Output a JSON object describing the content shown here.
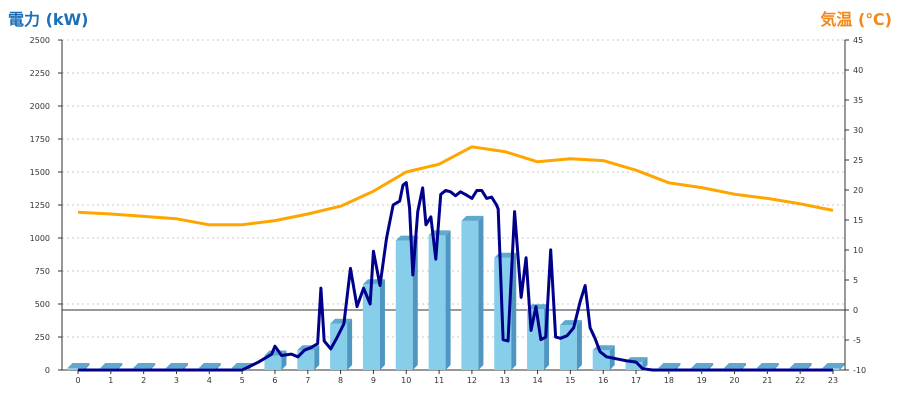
{
  "chart_data": {
    "type": "bar+line",
    "y_left_label": "電力 (kW)",
    "y_right_label": "気温 (℃)",
    "x_ticks": [
      "0",
      "1",
      "2",
      "3",
      "4",
      "5",
      "6",
      "7",
      "8",
      "9",
      "10",
      "11",
      "12",
      "13",
      "14",
      "15",
      "16",
      "17",
      "18",
      "19",
      "20",
      "21",
      "22",
      "23"
    ],
    "y_left_ticks": [
      "0",
      "250",
      "500",
      "750",
      "1000",
      "1250",
      "1500",
      "1750",
      "2000",
      "2250",
      "2500"
    ],
    "y_right_ticks": [
      "-10",
      "-5",
      "0",
      "5",
      "10",
      "15",
      "20",
      "25",
      "30",
      "35",
      "40",
      "45"
    ],
    "ylim_left": [
      0,
      2500
    ],
    "ylim_right": [
      -10,
      45
    ],
    "grid": true,
    "bars": {
      "x": [
        0,
        1,
        2,
        3,
        4,
        5,
        6,
        7,
        8,
        9,
        10,
        11,
        12,
        13,
        14,
        15,
        16,
        17,
        18,
        19,
        20,
        21,
        22,
        23
      ],
      "values": [
        15,
        15,
        15,
        15,
        15,
        15,
        110,
        150,
        350,
        650,
        980,
        1020,
        1130,
        850,
        460,
        340,
        150,
        60,
        15,
        15,
        15,
        15,
        15,
        15
      ],
      "color": "#87ceeb"
    },
    "power_line": {
      "color": "#00008b",
      "points": [
        [
          0,
          0
        ],
        [
          1,
          0
        ],
        [
          2,
          0
        ],
        [
          3,
          0
        ],
        [
          4,
          0
        ],
        [
          5,
          0
        ],
        [
          5.5,
          60
        ],
        [
          5.9,
          120
        ],
        [
          6,
          180
        ],
        [
          6.2,
          110
        ],
        [
          6.5,
          120
        ],
        [
          6.7,
          100
        ],
        [
          6.9,
          150
        ],
        [
          7.1,
          170
        ],
        [
          7.3,
          200
        ],
        [
          7.4,
          620
        ],
        [
          7.5,
          220
        ],
        [
          7.7,
          160
        ],
        [
          7.9,
          250
        ],
        [
          8.1,
          350
        ],
        [
          8.3,
          770
        ],
        [
          8.5,
          480
        ],
        [
          8.7,
          620
        ],
        [
          8.9,
          500
        ],
        [
          9,
          900
        ],
        [
          9.2,
          640
        ],
        [
          9.4,
          1000
        ],
        [
          9.6,
          1250
        ],
        [
          9.8,
          1280
        ],
        [
          9.9,
          1400
        ],
        [
          10,
          1420
        ],
        [
          10.1,
          1230
        ],
        [
          10.2,
          720
        ],
        [
          10.35,
          1200
        ],
        [
          10.5,
          1380
        ],
        [
          10.6,
          1100
        ],
        [
          10.75,
          1160
        ],
        [
          10.9,
          840
        ],
        [
          11.05,
          1330
        ],
        [
          11.2,
          1360
        ],
        [
          11.35,
          1350
        ],
        [
          11.5,
          1320
        ],
        [
          11.65,
          1350
        ],
        [
          11.8,
          1330
        ],
        [
          12,
          1300
        ],
        [
          12.15,
          1360
        ],
        [
          12.3,
          1360
        ],
        [
          12.45,
          1300
        ],
        [
          12.6,
          1310
        ],
        [
          12.75,
          1250
        ],
        [
          12.8,
          1220
        ],
        [
          12.95,
          230
        ],
        [
          13.1,
          220
        ],
        [
          13.3,
          1200
        ],
        [
          13.5,
          550
        ],
        [
          13.65,
          850
        ],
        [
          13.8,
          300
        ],
        [
          13.95,
          480
        ],
        [
          14.1,
          230
        ],
        [
          14.25,
          250
        ],
        [
          14.4,
          910
        ],
        [
          14.55,
          250
        ],
        [
          14.7,
          240
        ],
        [
          14.9,
          260
        ],
        [
          15.1,
          320
        ],
        [
          15.3,
          520
        ],
        [
          15.45,
          640
        ],
        [
          15.6,
          320
        ],
        [
          15.75,
          240
        ],
        [
          15.9,
          140
        ],
        [
          16.1,
          100
        ],
        [
          16.3,
          90
        ],
        [
          16.5,
          80
        ],
        [
          16.7,
          70
        ],
        [
          17,
          60
        ],
        [
          17.2,
          10
        ],
        [
          17.5,
          0
        ],
        [
          18,
          0
        ],
        [
          19,
          0
        ],
        [
          20,
          0
        ],
        [
          21,
          0
        ],
        [
          22,
          0
        ],
        [
          23,
          0
        ]
      ]
    },
    "temp_line": {
      "color": "#ffa500",
      "points": [
        [
          0,
          16.3
        ],
        [
          1,
          16.0
        ],
        [
          2,
          15.6
        ],
        [
          3,
          15.2
        ],
        [
          4,
          14.2
        ],
        [
          5,
          14.2
        ],
        [
          6,
          14.9
        ],
        [
          7,
          16.0
        ],
        [
          8,
          17.3
        ],
        [
          9,
          19.8
        ],
        [
          10,
          23.0
        ],
        [
          11,
          24.3
        ],
        [
          12,
          27.2
        ],
        [
          13,
          26.4
        ],
        [
          14,
          24.7
        ],
        [
          15,
          25.2
        ],
        [
          16,
          24.9
        ],
        [
          17,
          23.3
        ],
        [
          18,
          21.2
        ],
        [
          19,
          20.4
        ],
        [
          20,
          19.3
        ],
        [
          21,
          18.6
        ],
        [
          22,
          17.7
        ],
        [
          23,
          16.6
        ]
      ]
    }
  }
}
